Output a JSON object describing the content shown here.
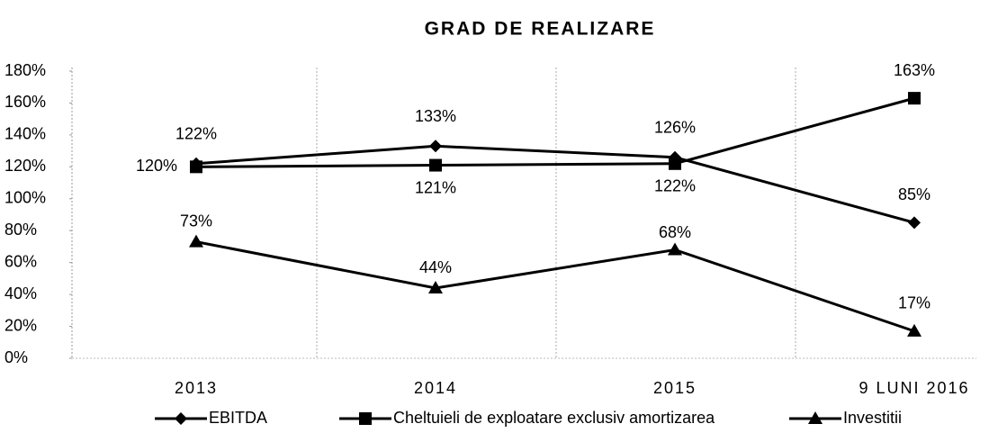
{
  "chart_data": {
    "type": "line",
    "title": "GRAD DE REALIZARE",
    "categories": [
      "2013",
      "2014",
      "2015",
      "9 LUNI 2016"
    ],
    "series": [
      {
        "name": "EBITDA",
        "color": "#000000",
        "marker": "diamond",
        "values": [
          122,
          133,
          126,
          85
        ],
        "value_labels": [
          "122%",
          "133%",
          "126%",
          "85%"
        ]
      },
      {
        "name": "Cheltuieli de exploatare exclusiv amortizarea",
        "color": "#000000",
        "marker": "square",
        "values": [
          120,
          121,
          122,
          163
        ],
        "value_labels": [
          "120%",
          "121%",
          "122%",
          "163%"
        ]
      },
      {
        "name": "Investitii",
        "color": "#000000",
        "marker": "triangle",
        "values": [
          73,
          44,
          68,
          17
        ],
        "value_labels": [
          "73%",
          "44%",
          "68%",
          "17%"
        ]
      }
    ],
    "ylim": [
      0,
      180
    ],
    "yticks": [
      {
        "value": 0,
        "label": "0%"
      },
      {
        "value": 20,
        "label": "20%"
      },
      {
        "value": 40,
        "label": "40%"
      },
      {
        "value": 60,
        "label": "60%"
      },
      {
        "value": 80,
        "label": "80%"
      },
      {
        "value": 100,
        "label": "100%"
      },
      {
        "value": 120,
        "label": "120%"
      },
      {
        "value": 140,
        "label": "140%"
      },
      {
        "value": 160,
        "label": "160%"
      },
      {
        "value": 180,
        "label": "180%"
      }
    ],
    "grid": false,
    "legend": "bottom"
  }
}
